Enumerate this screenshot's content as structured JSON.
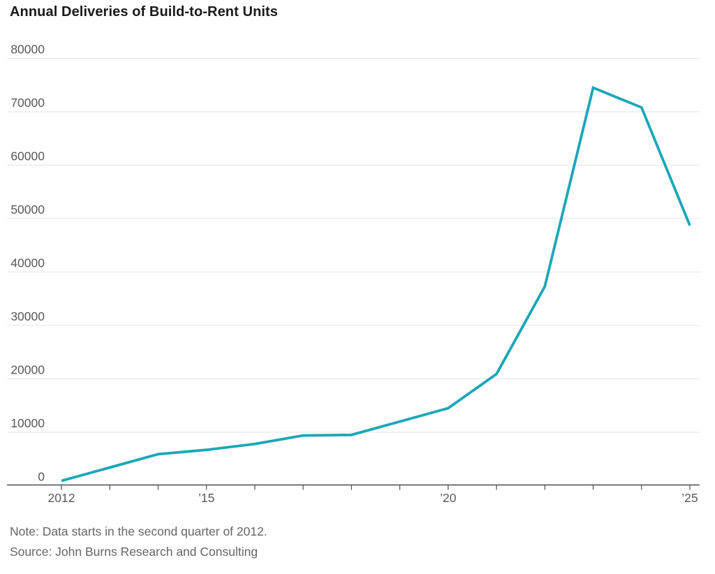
{
  "title": "Annual Deliveries of Build-to-Rent Units",
  "note": "Note: Data starts in the second quarter of 2012.",
  "source": "Source: John Burns Research and Consulting",
  "colors": {
    "line": "#1ba7b8",
    "grid": "#e5e5e5",
    "axis": "#4d4d4d",
    "title_text": "#1a1a1a",
    "tick_text": "#595959",
    "note_text": "#666666",
    "background": "#ffffff"
  },
  "chart_data": {
    "type": "line",
    "title": "Annual Deliveries of Build-to-Rent Units",
    "series_name": "Annual deliveries of build-to-rent units",
    "x": [
      2012,
      2013,
      2014,
      2015,
      2016,
      2017,
      2018,
      2019,
      2020,
      2021,
      2022,
      2023,
      2024,
      2025
    ],
    "values": [
      900,
      3400,
      5900,
      6700,
      7800,
      9400,
      9500,
      12000,
      14500,
      20900,
      37300,
      74500,
      70800,
      48700
    ],
    "xlabel": "",
    "ylabel": "",
    "xlim": [
      2012,
      2025
    ],
    "ylim": [
      0,
      80000
    ],
    "ytick_interval": 10000,
    "yticks": [
      0,
      10000,
      20000,
      30000,
      40000,
      50000,
      60000,
      70000,
      80000
    ],
    "ytick_labels": [
      "0",
      "10000",
      "20000",
      "30000",
      "40000",
      "50000",
      "60000",
      "70000",
      "80000"
    ],
    "xticks_minor_every_year": true,
    "xtick_labels": [
      {
        "year": 2012,
        "label": "2012"
      },
      {
        "year": 2015,
        "label": "’15"
      },
      {
        "year": 2020,
        "label": "’20"
      },
      {
        "year": 2025,
        "label": "’25"
      }
    ],
    "grid": "horizontal",
    "legend": "none"
  }
}
